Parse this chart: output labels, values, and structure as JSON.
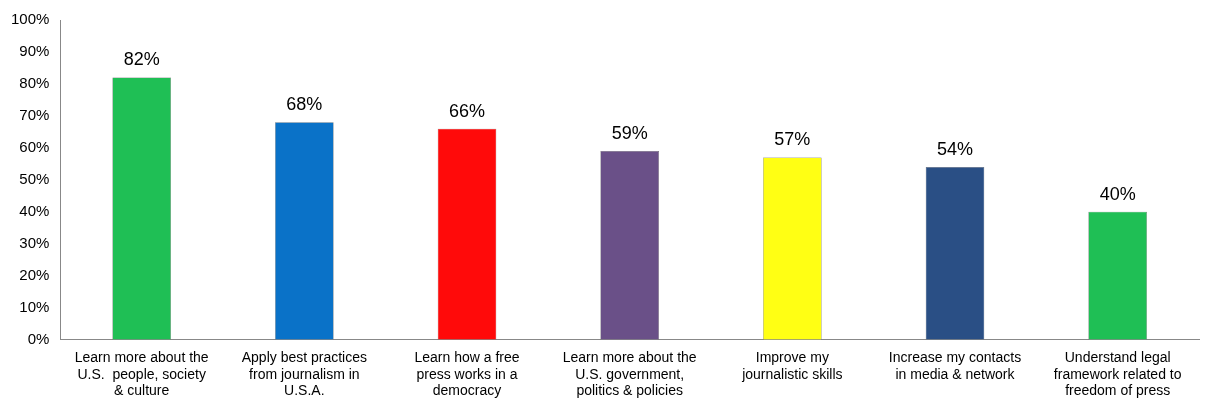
{
  "chart_data": {
    "type": "bar",
    "categories": [
      "Learn more about the U.S.  people, society & culture",
      "Apply best practices from journalism in U.S.A.",
      "Learn how a free press works in a democracy",
      "Learn more about the U.S. government, politics & policies",
      "Improve my journalistic skills",
      "Increase my contacts in media & network",
      "Understand legal framework related to freedom of press"
    ],
    "values": [
      82,
      68,
      66,
      59,
      57,
      54,
      40
    ],
    "colors": [
      "#1fbf55",
      "#0a72c8",
      "#ff0a0a",
      "#6a5088",
      "#ffff14",
      "#2a4f85",
      "#1fbf55"
    ],
    "value_labels": [
      "82%",
      "68%",
      "66%",
      "59%",
      "57%",
      "54%",
      "40%"
    ],
    "ylim": [
      0,
      100
    ],
    "yticks": [
      {
        "value": 0,
        "label": "0%"
      },
      {
        "value": 10,
        "label": "10%"
      },
      {
        "value": 20,
        "label": "20%"
      },
      {
        "value": 30,
        "label": "30%"
      },
      {
        "value": 40,
        "label": "40%"
      },
      {
        "value": 50,
        "label": "50%"
      },
      {
        "value": 60,
        "label": "60%"
      },
      {
        "value": 70,
        "label": "70%"
      },
      {
        "value": 80,
        "label": "80%"
      },
      {
        "value": 90,
        "label": "90%"
      },
      {
        "value": 100,
        "label": "100%"
      }
    ],
    "grid": false,
    "legend": false
  }
}
